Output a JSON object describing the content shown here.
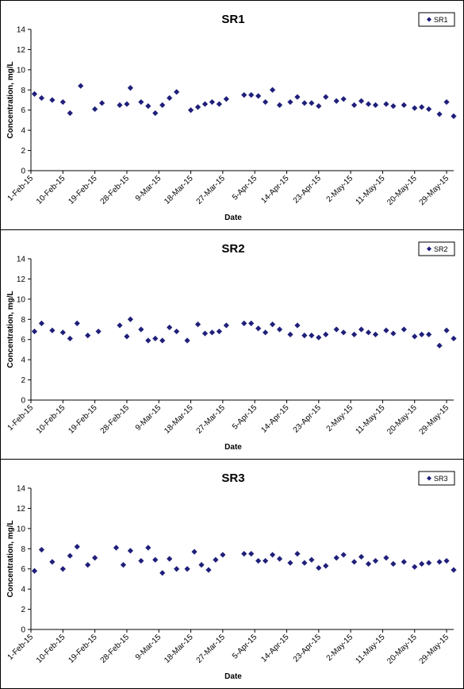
{
  "chart_data": [
    {
      "type": "scatter",
      "title": "SR1",
      "xlabel": "Date",
      "ylabel": "Concentration, mg/L",
      "ylim": [
        0,
        14
      ],
      "yticks": [
        "0",
        "2",
        "4",
        "6",
        "8",
        "10",
        "12",
        "14"
      ],
      "xticks": [
        "1-Feb-15",
        "10-Feb-15",
        "19-Feb-15",
        "28-Feb-15",
        "9-Mar-15",
        "18-Mar-15",
        "27-Mar-15",
        "5-Apr-15",
        "14-Apr-15",
        "23-Apr-15",
        "2-May-15",
        "11-May-15",
        "20-May-15",
        "29-May-15"
      ],
      "xlim": [
        "2015-02-01",
        "2015-05-31"
      ],
      "legend": "top-right",
      "grid": false,
      "marker_color": "#1f1f7a",
      "series": [
        {
          "name": "SR1",
          "x": [
            "2015-02-02",
            "2015-02-04",
            "2015-02-07",
            "2015-02-10",
            "2015-02-12",
            "2015-02-15",
            "2015-02-19",
            "2015-02-21",
            "2015-02-26",
            "2015-02-28",
            "2015-03-01",
            "2015-03-04",
            "2015-03-06",
            "2015-03-08",
            "2015-03-10",
            "2015-03-12",
            "2015-03-14",
            "2015-03-18",
            "2015-03-20",
            "2015-03-22",
            "2015-03-24",
            "2015-03-26",
            "2015-03-28",
            "2015-04-02",
            "2015-04-04",
            "2015-04-06",
            "2015-04-08",
            "2015-04-10",
            "2015-04-12",
            "2015-04-15",
            "2015-04-17",
            "2015-04-19",
            "2015-04-21",
            "2015-04-23",
            "2015-04-25",
            "2015-04-28",
            "2015-04-30",
            "2015-05-03",
            "2015-05-05",
            "2015-05-07",
            "2015-05-09",
            "2015-05-12",
            "2015-05-14",
            "2015-05-17",
            "2015-05-20",
            "2015-05-22",
            "2015-05-24",
            "2015-05-27",
            "2015-05-29",
            "2015-05-31"
          ],
          "y": [
            7.6,
            7.2,
            7.0,
            6.8,
            5.7,
            8.4,
            6.1,
            6.7,
            6.5,
            6.6,
            8.2,
            6.8,
            6.4,
            5.7,
            6.5,
            7.2,
            7.8,
            6.0,
            6.3,
            6.6,
            6.8,
            6.6,
            7.1,
            7.5,
            7.5,
            7.4,
            6.8,
            8.0,
            6.5,
            6.8,
            7.3,
            6.7,
            6.7,
            6.4,
            7.3,
            6.9,
            7.1,
            6.5,
            6.9,
            6.6,
            6.5,
            6.6,
            6.4,
            6.5,
            6.2,
            6.3,
            6.1,
            5.6,
            6.8,
            5.4
          ]
        }
      ]
    },
    {
      "type": "scatter",
      "title": "SR2",
      "xlabel": "Date",
      "ylabel": "Concentration, mg/L",
      "ylim": [
        0,
        14
      ],
      "yticks": [
        "0",
        "2",
        "4",
        "6",
        "8",
        "10",
        "12",
        "14"
      ],
      "xticks": [
        "1-Feb-15",
        "10-Feb-15",
        "19-Feb-15",
        "28-Feb-15",
        "9-Mar-15",
        "18-Mar-15",
        "27-Mar-15",
        "5-Apr-15",
        "14-Apr-15",
        "23-Apr-15",
        "2-May-15",
        "11-May-15",
        "20-May-15",
        "29-May-15"
      ],
      "xlim": [
        "2015-02-01",
        "2015-05-31"
      ],
      "legend": "top-right",
      "grid": false,
      "marker_color": "#1f1f7a",
      "series": [
        {
          "name": "SR2",
          "x": [
            "2015-02-02",
            "2015-02-04",
            "2015-02-07",
            "2015-02-10",
            "2015-02-12",
            "2015-02-14",
            "2015-02-17",
            "2015-02-20",
            "2015-02-26",
            "2015-02-28",
            "2015-03-01",
            "2015-03-04",
            "2015-03-06",
            "2015-03-08",
            "2015-03-10",
            "2015-03-12",
            "2015-03-14",
            "2015-03-17",
            "2015-03-20",
            "2015-03-22",
            "2015-03-24",
            "2015-03-26",
            "2015-03-28",
            "2015-04-02",
            "2015-04-04",
            "2015-04-06",
            "2015-04-08",
            "2015-04-10",
            "2015-04-12",
            "2015-04-15",
            "2015-04-17",
            "2015-04-19",
            "2015-04-21",
            "2015-04-23",
            "2015-04-25",
            "2015-04-28",
            "2015-04-30",
            "2015-05-03",
            "2015-05-05",
            "2015-05-07",
            "2015-05-09",
            "2015-05-12",
            "2015-05-14",
            "2015-05-17",
            "2015-05-20",
            "2015-05-22",
            "2015-05-24",
            "2015-05-27",
            "2015-05-29",
            "2015-05-31"
          ],
          "y": [
            6.8,
            7.6,
            6.9,
            6.7,
            6.1,
            7.6,
            6.4,
            6.8,
            7.4,
            6.3,
            8.0,
            7.0,
            5.9,
            6.1,
            5.9,
            7.2,
            6.8,
            5.9,
            7.5,
            6.6,
            6.7,
            6.8,
            7.4,
            7.6,
            7.6,
            7.1,
            6.7,
            7.5,
            7.0,
            6.5,
            7.4,
            6.4,
            6.4,
            6.2,
            6.5,
            7.0,
            6.7,
            6.5,
            7.0,
            6.7,
            6.5,
            6.9,
            6.6,
            7.0,
            6.3,
            6.5,
            6.5,
            5.4,
            6.9,
            6.1
          ]
        }
      ]
    },
    {
      "type": "scatter",
      "title": "SR3",
      "xlabel": "Date",
      "ylabel": "Concentration, mg/L",
      "ylim": [
        0,
        14
      ],
      "yticks": [
        "0",
        "2",
        "4",
        "6",
        "8",
        "10",
        "12",
        "14"
      ],
      "xticks": [
        "1-Feb-15",
        "10-Feb-15",
        "19-Feb-15",
        "28-Feb-15",
        "9-Mar-15",
        "18-Mar-15",
        "27-Mar-15",
        "5-Apr-15",
        "14-Apr-15",
        "23-Apr-15",
        "2-May-15",
        "11-May-15",
        "20-May-15",
        "29-May-15"
      ],
      "xlim": [
        "2015-02-01",
        "2015-05-31"
      ],
      "legend": "top-right",
      "grid": false,
      "marker_color": "#1f1f7a",
      "series": [
        {
          "name": "SR3",
          "x": [
            "2015-02-02",
            "2015-02-04",
            "2015-02-07",
            "2015-02-10",
            "2015-02-12",
            "2015-02-14",
            "2015-02-17",
            "2015-02-19",
            "2015-02-25",
            "2015-02-27",
            "2015-03-01",
            "2015-03-04",
            "2015-03-06",
            "2015-03-08",
            "2015-03-10",
            "2015-03-12",
            "2015-03-14",
            "2015-03-17",
            "2015-03-19",
            "2015-03-21",
            "2015-03-23",
            "2015-03-25",
            "2015-03-27",
            "2015-04-02",
            "2015-04-04",
            "2015-04-06",
            "2015-04-08",
            "2015-04-10",
            "2015-04-12",
            "2015-04-15",
            "2015-04-17",
            "2015-04-19",
            "2015-04-21",
            "2015-04-23",
            "2015-04-25",
            "2015-04-28",
            "2015-04-30",
            "2015-05-03",
            "2015-05-05",
            "2015-05-07",
            "2015-05-09",
            "2015-05-12",
            "2015-05-14",
            "2015-05-17",
            "2015-05-20",
            "2015-05-22",
            "2015-05-24",
            "2015-05-27",
            "2015-05-29",
            "2015-05-31"
          ],
          "y": [
            5.8,
            7.9,
            6.7,
            6.0,
            7.3,
            8.2,
            6.4,
            7.1,
            8.1,
            6.4,
            7.8,
            6.8,
            8.1,
            6.9,
            5.6,
            7.0,
            6.0,
            6.0,
            7.7,
            6.4,
            5.9,
            6.9,
            7.4,
            7.5,
            7.5,
            6.8,
            6.8,
            7.4,
            7.0,
            6.6,
            7.5,
            6.6,
            6.9,
            6.1,
            6.3,
            7.1,
            7.4,
            6.7,
            7.2,
            6.5,
            6.8,
            7.1,
            6.5,
            6.7,
            6.2,
            6.5,
            6.6,
            6.7,
            6.8,
            5.9
          ]
        }
      ]
    }
  ]
}
